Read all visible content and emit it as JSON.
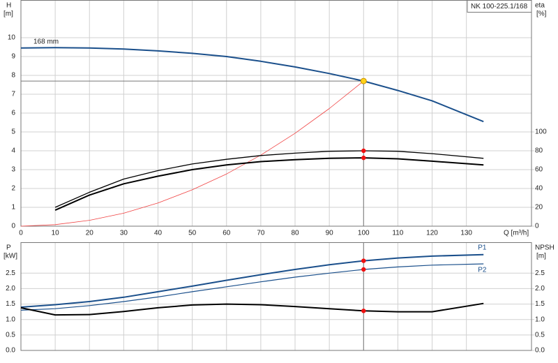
{
  "chart_data": [
    {
      "type": "line",
      "title": "NK 100-225.1/168",
      "ylabel": "H",
      "yunit": "[m]",
      "y2label": "eta",
      "y2unit": "[%]",
      "xlabel": "Q [m³/h]",
      "annotation": "168 mm",
      "x": [
        0,
        10,
        20,
        30,
        40,
        50,
        60,
        70,
        80,
        90,
        100,
        110,
        120,
        135
      ],
      "xlim": [
        0,
        149
      ],
      "xticks": [
        0,
        10,
        20,
        30,
        40,
        50,
        60,
        70,
        80,
        90,
        100,
        110,
        120,
        130
      ],
      "ylim": [
        0,
        12
      ],
      "yticks": [
        0,
        1,
        2,
        3,
        4,
        5,
        6,
        7,
        8,
        9,
        10
      ],
      "y2lim": [
        0,
        240
      ],
      "y2ticks": [
        0,
        20,
        40,
        60,
        80,
        100
      ],
      "grid": true,
      "duty_point": {
        "x": 100,
        "y": 7.7,
        "color": "#ffd21a"
      },
      "series": [
        {
          "color": "#1a4f8b",
          "width": 2,
          "values": [
            9.45,
            9.47,
            9.45,
            9.4,
            9.3,
            9.17,
            9.0,
            8.75,
            8.45,
            8.1,
            7.7,
            7.2,
            6.65,
            5.55
          ]
        },
        {
          "color": "#f04040",
          "width": 0.8,
          "values": [
            0,
            0.08,
            0.31,
            0.69,
            1.23,
            1.93,
            2.77,
            3.77,
            4.93,
            6.24,
            7.7,
            null,
            null,
            null
          ]
        },
        {
          "color": "#000000",
          "width": 1.3,
          "axis": "y2",
          "dot": 10,
          "values": [
            null,
            20,
            36,
            50,
            59,
            66,
            71,
            75,
            77.5,
            79.5,
            80,
            79.5,
            77,
            72
          ]
        },
        {
          "color": "#000000",
          "width": 2,
          "axis": "y2",
          "dot": 10,
          "values": [
            null,
            17,
            33,
            45,
            53,
            60,
            65,
            68.5,
            70.5,
            72,
            72.5,
            71.5,
            69,
            65
          ]
        }
      ]
    },
    {
      "type": "line",
      "ylabel": "P",
      "yunit": "[kW]",
      "y2label": "NPSH",
      "y2unit": "[m]",
      "x": [
        0,
        10,
        20,
        30,
        40,
        50,
        60,
        70,
        80,
        90,
        100,
        110,
        120,
        135
      ],
      "xlim": [
        0,
        149
      ],
      "xticks": [
        0,
        10,
        20,
        30,
        40,
        50,
        60,
        70,
        80,
        90,
        100,
        110,
        120,
        130
      ],
      "xtick_labels": false,
      "ylim": [
        0,
        3.5
      ],
      "yticks": [
        {
          "value": 0,
          "label": "0.0"
        },
        0.5,
        {
          "value": 1,
          "label": "1.0"
        },
        1.5,
        {
          "value": 2,
          "label": "2.0"
        },
        2.5
      ],
      "y2lim": [
        0,
        3.5
      ],
      "y2ticks": [
        {
          "value": 0,
          "label": "0.0"
        },
        0.5,
        {
          "value": 1,
          "label": "1.0"
        },
        1.5,
        {
          "value": 2,
          "label": "2.0"
        },
        2.5
      ],
      "grid": true,
      "series": [
        {
          "name": "P1",
          "color": "#1a4f8b",
          "width": 2,
          "dot": 10,
          "values": [
            1.4,
            1.48,
            1.58,
            1.72,
            1.9,
            2.08,
            2.27,
            2.45,
            2.62,
            2.77,
            2.9,
            2.99,
            3.05,
            3.1
          ]
        },
        {
          "name": "P2",
          "color": "#1a4f8b",
          "width": 1.2,
          "dot": 10,
          "values": [
            1.3,
            1.35,
            1.45,
            1.58,
            1.73,
            1.9,
            2.06,
            2.22,
            2.37,
            2.5,
            2.62,
            2.7,
            2.76,
            2.8
          ]
        },
        {
          "color": "#000000",
          "width": 2,
          "axis": "y2",
          "dot": 10,
          "values": [
            1.38,
            1.15,
            1.16,
            1.26,
            1.38,
            1.47,
            1.5,
            1.48,
            1.42,
            1.35,
            1.28,
            1.25,
            1.25,
            1.52
          ]
        }
      ]
    }
  ]
}
